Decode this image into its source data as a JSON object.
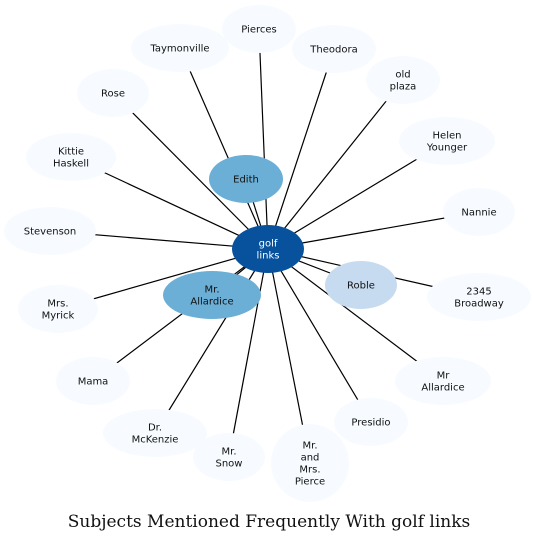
{
  "title": "Subjects Mentioned Frequently With golf links",
  "center": {
    "label": [
      "golf",
      "links"
    ]
  },
  "colors": {
    "center": "#08519c",
    "strong": "#6baed6",
    "medium": "#c6dbef",
    "light": "#f7fbff",
    "edge": "#000000"
  },
  "nodes": [
    {
      "id": "pierces",
      "label": [
        "Pierces"
      ],
      "tone": "light"
    },
    {
      "id": "taymonville",
      "label": [
        "Taymonville"
      ],
      "tone": "light"
    },
    {
      "id": "theodora",
      "label": [
        "Theodora"
      ],
      "tone": "light"
    },
    {
      "id": "old-plaza",
      "label": [
        "old",
        "plaza"
      ],
      "tone": "light"
    },
    {
      "id": "rose",
      "label": [
        "Rose"
      ],
      "tone": "light"
    },
    {
      "id": "helen-younger",
      "label": [
        "Helen",
        "Younger"
      ],
      "tone": "light"
    },
    {
      "id": "kittie-haskell",
      "label": [
        "Kittie",
        "Haskell"
      ],
      "tone": "light"
    },
    {
      "id": "edith",
      "label": [
        "Edith"
      ],
      "tone": "strong"
    },
    {
      "id": "nannie",
      "label": [
        "Nannie"
      ],
      "tone": "light"
    },
    {
      "id": "stevenson",
      "label": [
        "Stevenson"
      ],
      "tone": "light"
    },
    {
      "id": "roble",
      "label": [
        "Roble"
      ],
      "tone": "medium"
    },
    {
      "id": "mr-allardice-strong",
      "label": [
        "Mr.",
        "Allardice"
      ],
      "tone": "strong"
    },
    {
      "id": "2345-broadway",
      "label": [
        "2345",
        "Broadway"
      ],
      "tone": "light"
    },
    {
      "id": "mrs-myrick",
      "label": [
        "Mrs.",
        "Myrick"
      ],
      "tone": "light"
    },
    {
      "id": "mama",
      "label": [
        "Mama"
      ],
      "tone": "light"
    },
    {
      "id": "mr-allardice-light",
      "label": [
        "Mr",
        "Allardice"
      ],
      "tone": "light"
    },
    {
      "id": "presidio",
      "label": [
        "Presidio"
      ],
      "tone": "light"
    },
    {
      "id": "dr-mckenzie",
      "label": [
        "Dr.",
        "McKenzie"
      ],
      "tone": "light"
    },
    {
      "id": "mr-snow",
      "label": [
        "Mr.",
        "Snow"
      ],
      "tone": "light"
    },
    {
      "id": "mr-and-mrs-pierce",
      "label": [
        "Mr.",
        "and",
        "Mrs.",
        "Pierce"
      ],
      "tone": "light"
    }
  ]
}
